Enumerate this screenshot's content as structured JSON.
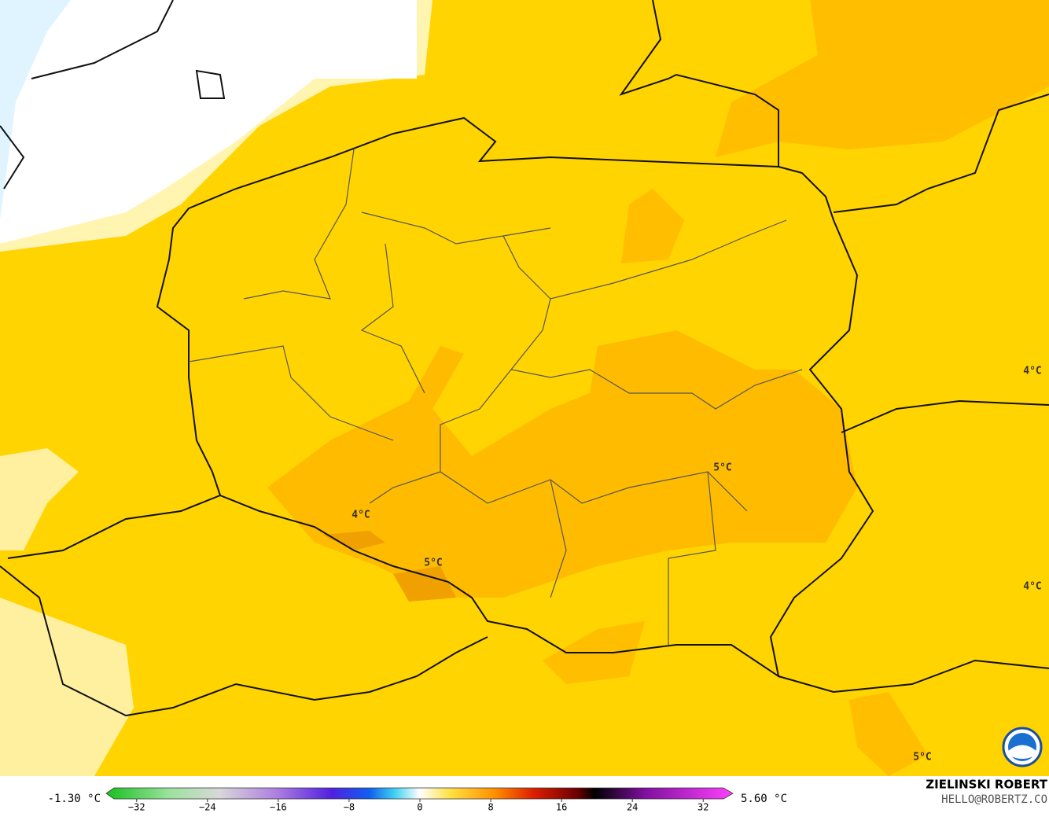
{
  "map": {
    "labels": [
      "4°C",
      "5°C",
      "5°C",
      "4°C",
      "4°C",
      "5°C"
    ]
  },
  "legend": {
    "min_label": "-1.30 °C",
    "max_label": "5.60 °C",
    "range": [
      -35,
      35
    ],
    "ticks": [
      {
        "value": -32,
        "label": "−32"
      },
      {
        "value": -24,
        "label": "−24"
      },
      {
        "value": -16,
        "label": "−16"
      },
      {
        "value": -8,
        "label": "−8"
      },
      0,
      8,
      16,
      24,
      32
    ]
  },
  "credit": {
    "name": "ZIELINSKI ROBERT",
    "email": "HELLO@ROBERTZ.CO"
  }
}
